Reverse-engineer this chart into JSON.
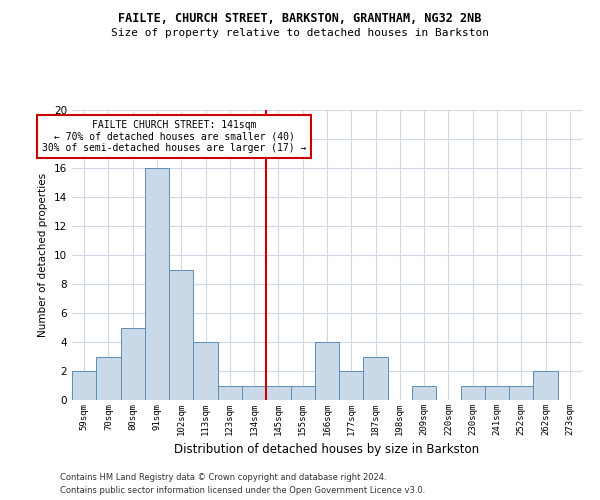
{
  "title": "FAILTE, CHURCH STREET, BARKSTON, GRANTHAM, NG32 2NB",
  "subtitle": "Size of property relative to detached houses in Barkston",
  "xlabel": "Distribution of detached houses by size in Barkston",
  "ylabel": "Number of detached properties",
  "categories": [
    "59sqm",
    "70sqm",
    "80sqm",
    "91sqm",
    "102sqm",
    "113sqm",
    "123sqm",
    "134sqm",
    "145sqm",
    "155sqm",
    "166sqm",
    "177sqm",
    "187sqm",
    "198sqm",
    "209sqm",
    "220sqm",
    "230sqm",
    "241sqm",
    "252sqm",
    "262sqm",
    "273sqm"
  ],
  "values": [
    2,
    3,
    5,
    16,
    9,
    4,
    1,
    1,
    1,
    1,
    4,
    2,
    3,
    0,
    1,
    0,
    1,
    1,
    1,
    2,
    0
  ],
  "bar_color": "#c9d9e8",
  "bar_edge_color": "#5b8db8",
  "property_line_x": 8,
  "property_line_label": "FAILTE CHURCH STREET: 141sqm",
  "pct_smaller": "70% of detached houses are smaller (40)",
  "pct_larger": "30% of semi-detached houses are larger (17)",
  "annotation_box_color": "#cc0000",
  "vline_color": "#cc0000",
  "grid_color": "#d0d8e8",
  "background_color": "#ffffff",
  "ylim": [
    0,
    20
  ],
  "footer1": "Contains HM Land Registry data © Crown copyright and database right 2024.",
  "footer2": "Contains public sector information licensed under the Open Government Licence v3.0."
}
